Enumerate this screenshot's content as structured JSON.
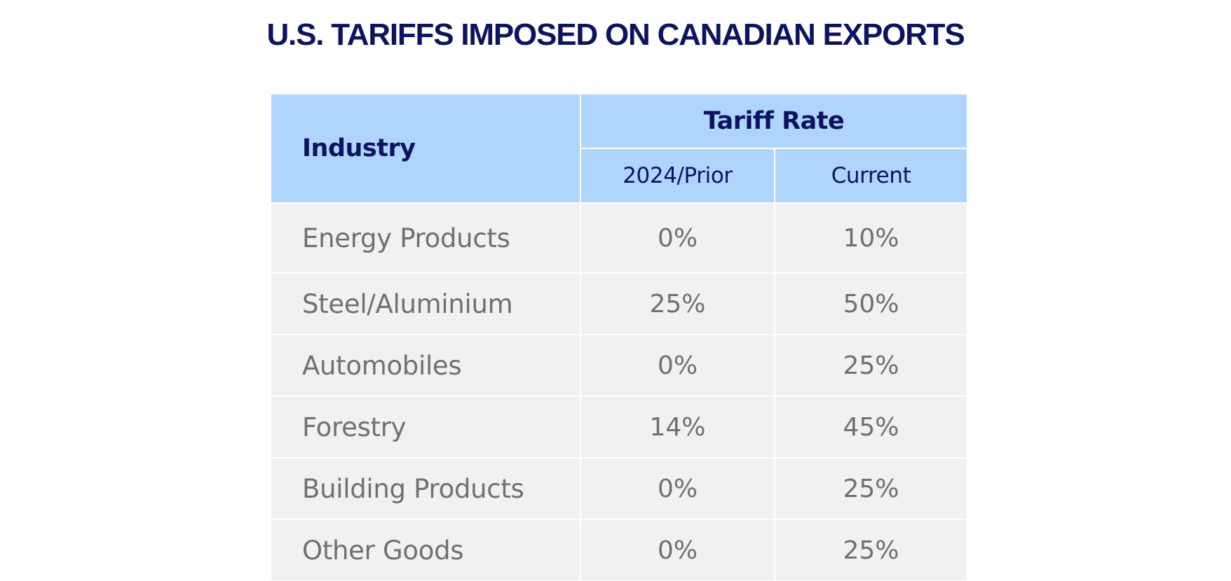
{
  "title": "U.S. TARIFFS IMPOSED ON CANADIAN EXPORTS",
  "table": {
    "headers": {
      "industry": "Industry",
      "tariff_rate": "Tariff Rate",
      "prior": "2024/Prior",
      "current": "Current"
    },
    "rows": [
      {
        "industry": "Energy Products",
        "prior": "0%",
        "current": "10%"
      },
      {
        "industry": "Steel/Aluminium",
        "prior": "25%",
        "current": "50%"
      },
      {
        "industry": "Automobiles",
        "prior": "0%",
        "current": "25%"
      },
      {
        "industry": "Forestry",
        "prior": "14%",
        "current": "45%"
      },
      {
        "industry": "Building Products",
        "prior": "0%",
        "current": "25%"
      },
      {
        "industry": "Other Goods",
        "prior": "0%",
        "current": "25%"
      }
    ]
  },
  "colors": {
    "title": "#0c1360",
    "header_bg": "#afd5fd",
    "header_text": "#0c1360",
    "body_bg": "#f1f1f1",
    "body_text": "#707070"
  }
}
